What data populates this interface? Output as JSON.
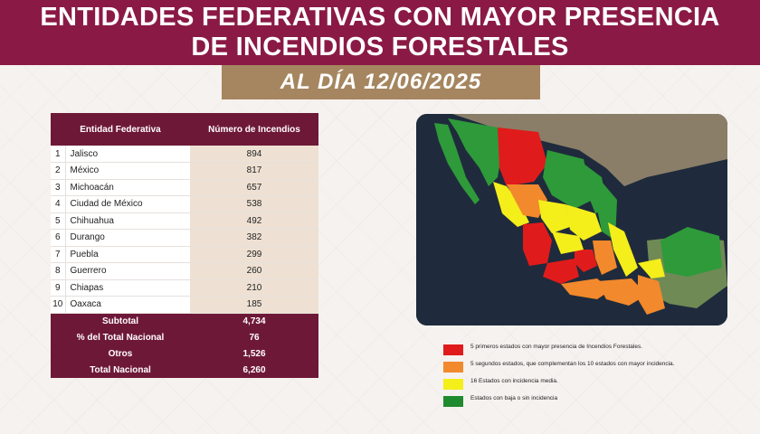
{
  "title": {
    "line1": "ENTIDADES FEDERATIVAS CON MAYOR PRESENCIA",
    "line2": "DE INCENDIOS FORESTALES"
  },
  "date_label": "AL DÍA 12/06/2025",
  "table": {
    "headers": [
      "Entidad Federativa",
      "Número de Incendios"
    ],
    "rows": [
      {
        "rank": "1",
        "state": "Jalisco",
        "value": "894"
      },
      {
        "rank": "2",
        "state": "México",
        "value": "817"
      },
      {
        "rank": "3",
        "state": "Michoacán",
        "value": "657"
      },
      {
        "rank": "4",
        "state": "Ciudad de México",
        "value": "538"
      },
      {
        "rank": "5",
        "state": "Chihuahua",
        "value": "492"
      },
      {
        "rank": "6",
        "state": "Durango",
        "value": "382"
      },
      {
        "rank": "7",
        "state": "Puebla",
        "value": "299"
      },
      {
        "rank": "8",
        "state": "Guerrero",
        "value": "260"
      },
      {
        "rank": "9",
        "state": "Chiapas",
        "value": "210"
      },
      {
        "rank": "10",
        "state": "Oaxaca",
        "value": "185"
      }
    ],
    "summary": [
      {
        "label": "Subtotal",
        "value": "4,734"
      },
      {
        "label": "% del Total Nacional",
        "value": "76"
      },
      {
        "label": "Otros",
        "value": "1,526"
      },
      {
        "label": "Total Nacional",
        "value": "6,260"
      }
    ]
  },
  "legend": [
    {
      "color": "#e01b1b",
      "text": "5 primeros estados con mayor presencia de Incendios Forestales."
    },
    {
      "color": "#f2892c",
      "text": "5 segundos estados, que complementan los 10 estados con mayor incidencia."
    },
    {
      "color": "#f4ee1b",
      "text": "16 Estados con incidencia media."
    },
    {
      "color": "#1f8a2e",
      "text": "Estados con baja o sin incidencia"
    }
  ],
  "colors": {
    "brand": "#8a1a45",
    "date_band": "#a58660",
    "table_header": "#6e1838",
    "value_cell": "#eee1d3"
  }
}
